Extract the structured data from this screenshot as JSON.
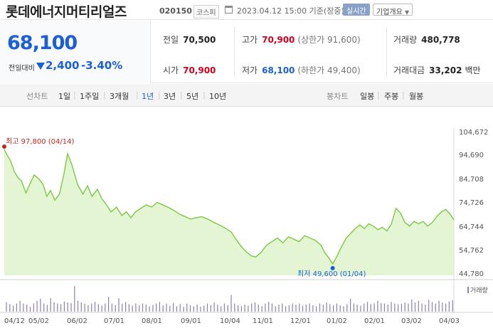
{
  "header": {
    "name": "롯데에너지머티리얼즈",
    "code": "020150",
    "market": "코스피",
    "as_of": "2023.04.12 15:00  기준(장중)",
    "realtime_label": "실시간",
    "company_info_label": "기업개요"
  },
  "price": {
    "current": "68,100",
    "vs_label": "전일대비",
    "change": "2,400",
    "change_pct": "-3.40%",
    "direction": "down"
  },
  "stats": {
    "prev_close_label": "전일",
    "prev_close": "70,500",
    "high_label": "고가",
    "high": "70,900",
    "upper_limit": "(상한가 91,600)",
    "volume_label": "거래량",
    "volume": "480,778",
    "open_label": "시가",
    "open": "70,900",
    "low_label": "저가",
    "low": "68,100",
    "lower_limit": "(하한가 49,400)",
    "value_label": "거래대금",
    "value": "33,202",
    "value_unit": "백만"
  },
  "toolbar": {
    "line_chart_label": "선차트",
    "periods": [
      "1일",
      "1주일",
      "3개월",
      "1년",
      "3년",
      "5년",
      "10년"
    ],
    "selected_period": "1년",
    "candle_chart_label": "봉차트",
    "candles": [
      "일봉",
      "주봉",
      "월봉"
    ]
  },
  "colors": {
    "line": "#7ac943",
    "fill": "#e3f5d3",
    "high_marker": "#c0261f",
    "low_marker": "#1a5fd6",
    "volume_bar": "#8f7fae",
    "down": "#1a5fd6",
    "up": "#d0021b"
  },
  "chart_data": {
    "type": "area",
    "y_ticks": [
      "104,672",
      "94,690",
      "84,708",
      "74,726",
      "64,744",
      "54,762",
      "44,780"
    ],
    "ylim": [
      44780,
      104672
    ],
    "x_ticks": [
      "04/12",
      "05/02",
      "06/02",
      "07/01",
      "08/01",
      "09/01",
      "10/04",
      "11/01",
      "12/01",
      "01/02",
      "02/01",
      "03/02",
      "04/03"
    ],
    "high_annotation": "최고  97,800  (04/14)",
    "low_annotation": "최저  49,600  (01/04)",
    "high_value": 97800,
    "low_value": 49600,
    "volume_label": "거래량",
    "price_series": [
      [
        0,
        97800
      ],
      [
        3,
        95500
      ],
      [
        7,
        93000
      ],
      [
        11,
        88500
      ],
      [
        15,
        86000
      ],
      [
        19,
        84500
      ],
      [
        24,
        79500
      ],
      [
        28,
        83000
      ],
      [
        33,
        87000
      ],
      [
        38,
        85500
      ],
      [
        43,
        83000
      ],
      [
        47,
        78000
      ],
      [
        51,
        80500
      ],
      [
        56,
        76500
      ],
      [
        61,
        79000
      ],
      [
        66,
        87500
      ],
      [
        70,
        96000
      ],
      [
        75,
        91000
      ],
      [
        81,
        83000
      ],
      [
        87,
        79000
      ],
      [
        92,
        82500
      ],
      [
        97,
        78000
      ],
      [
        103,
        81000
      ],
      [
        108,
        77000
      ],
      [
        113,
        74500
      ],
      [
        118,
        71500
      ],
      [
        124,
        73500
      ],
      [
        130,
        70000
      ],
      [
        135,
        71500
      ],
      [
        140,
        69000
      ],
      [
        145,
        71500
      ],
      [
        151,
        73000
      ],
      [
        157,
        74500
      ],
      [
        163,
        73500
      ],
      [
        169,
        75500
      ],
      [
        175,
        74500
      ],
      [
        181,
        73500
      ],
      [
        188,
        72000
      ],
      [
        194,
        70500
      ],
      [
        200,
        69500
      ],
      [
        206,
        68500
      ],
      [
        212,
        69000
      ],
      [
        218,
        69500
      ],
      [
        225,
        68500
      ],
      [
        232,
        67000
      ],
      [
        238,
        66000
      ],
      [
        245,
        64500
      ],
      [
        251,
        63000
      ],
      [
        257,
        59500
      ],
      [
        263,
        56500
      ],
      [
        268,
        54500
      ],
      [
        273,
        53000
      ],
      [
        278,
        52500
      ],
      [
        284,
        54500
      ],
      [
        290,
        57500
      ],
      [
        296,
        59000
      ],
      [
        302,
        60500
      ],
      [
        308,
        58500
      ],
      [
        314,
        61000
      ],
      [
        320,
        60000
      ],
      [
        326,
        59000
      ],
      [
        332,
        61500
      ],
      [
        338,
        60500
      ],
      [
        344,
        59500
      ],
      [
        350,
        57500
      ],
      [
        355,
        54000
      ],
      [
        359,
        52000
      ],
      [
        363,
        49600
      ],
      [
        368,
        53000
      ],
      [
        373,
        57000
      ],
      [
        378,
        60500
      ],
      [
        383,
        62500
      ],
      [
        388,
        64500
      ],
      [
        393,
        66000
      ],
      [
        398,
        64500
      ],
      [
        403,
        66500
      ],
      [
        408,
        65500
      ],
      [
        413,
        64000
      ],
      [
        418,
        65000
      ],
      [
        423,
        63500
      ],
      [
        428,
        66500
      ],
      [
        433,
        73000
      ],
      [
        438,
        71000
      ],
      [
        443,
        67000
      ],
      [
        448,
        65500
      ],
      [
        453,
        67500
      ],
      [
        458,
        66500
      ],
      [
        463,
        67500
      ],
      [
        468,
        65500
      ],
      [
        473,
        67000
      ],
      [
        478,
        69500
      ],
      [
        483,
        71500
      ],
      [
        488,
        72500
      ],
      [
        493,
        70500
      ],
      [
        497,
        68100
      ]
    ],
    "volume_series": [
      0.35,
      0.28,
      0.22,
      0.3,
      0.4,
      0.3,
      0.26,
      0.18,
      0.3,
      0.4,
      0.48,
      0.3,
      0.25,
      0.5,
      0.35,
      0.3,
      0.28,
      0.38,
      0.34,
      0.32,
      0.95,
      0.4,
      0.35,
      0.3,
      0.25,
      0.3,
      0.36,
      0.28,
      0.22,
      0.3,
      0.55,
      0.3,
      0.25,
      0.5,
      0.3,
      0.36,
      0.28,
      0.22,
      0.3,
      0.24,
      0.3,
      0.26,
      0.2,
      0.25,
      0.3,
      0.36,
      0.24,
      0.3,
      0.22,
      0.32,
      0.2,
      0.28,
      0.18,
      0.3,
      0.24,
      0.2,
      0.26,
      0.18,
      0.22,
      0.3,
      0.24,
      0.34,
      0.26,
      0.2,
      0.3,
      0.24,
      0.62,
      0.3,
      0.24,
      0.2,
      0.26,
      0.22,
      0.3,
      0.34,
      0.26,
      0.2,
      0.3,
      0.36,
      0.3,
      0.2,
      0.26,
      0.3,
      0.2,
      0.24,
      0.3,
      0.26,
      0.3,
      0.22,
      0.26,
      0.3,
      0.24,
      0.2,
      0.3,
      0.26,
      0.34,
      0.28,
      0.24,
      0.3,
      0.24,
      0.2,
      0.28,
      0.48,
      0.3,
      0.26,
      0.22,
      0.3,
      0.36,
      0.28,
      0.3,
      0.4,
      0.32,
      0.3,
      0.26,
      0.36,
      0.3,
      0.28,
      0.3,
      0.34,
      0.3,
      0.45,
      0.34,
      0.4,
      0.3,
      0.26,
      0.44,
      0.36,
      0.3,
      0.4,
      0.34,
      0.3,
      0.38,
      0.42
    ]
  }
}
